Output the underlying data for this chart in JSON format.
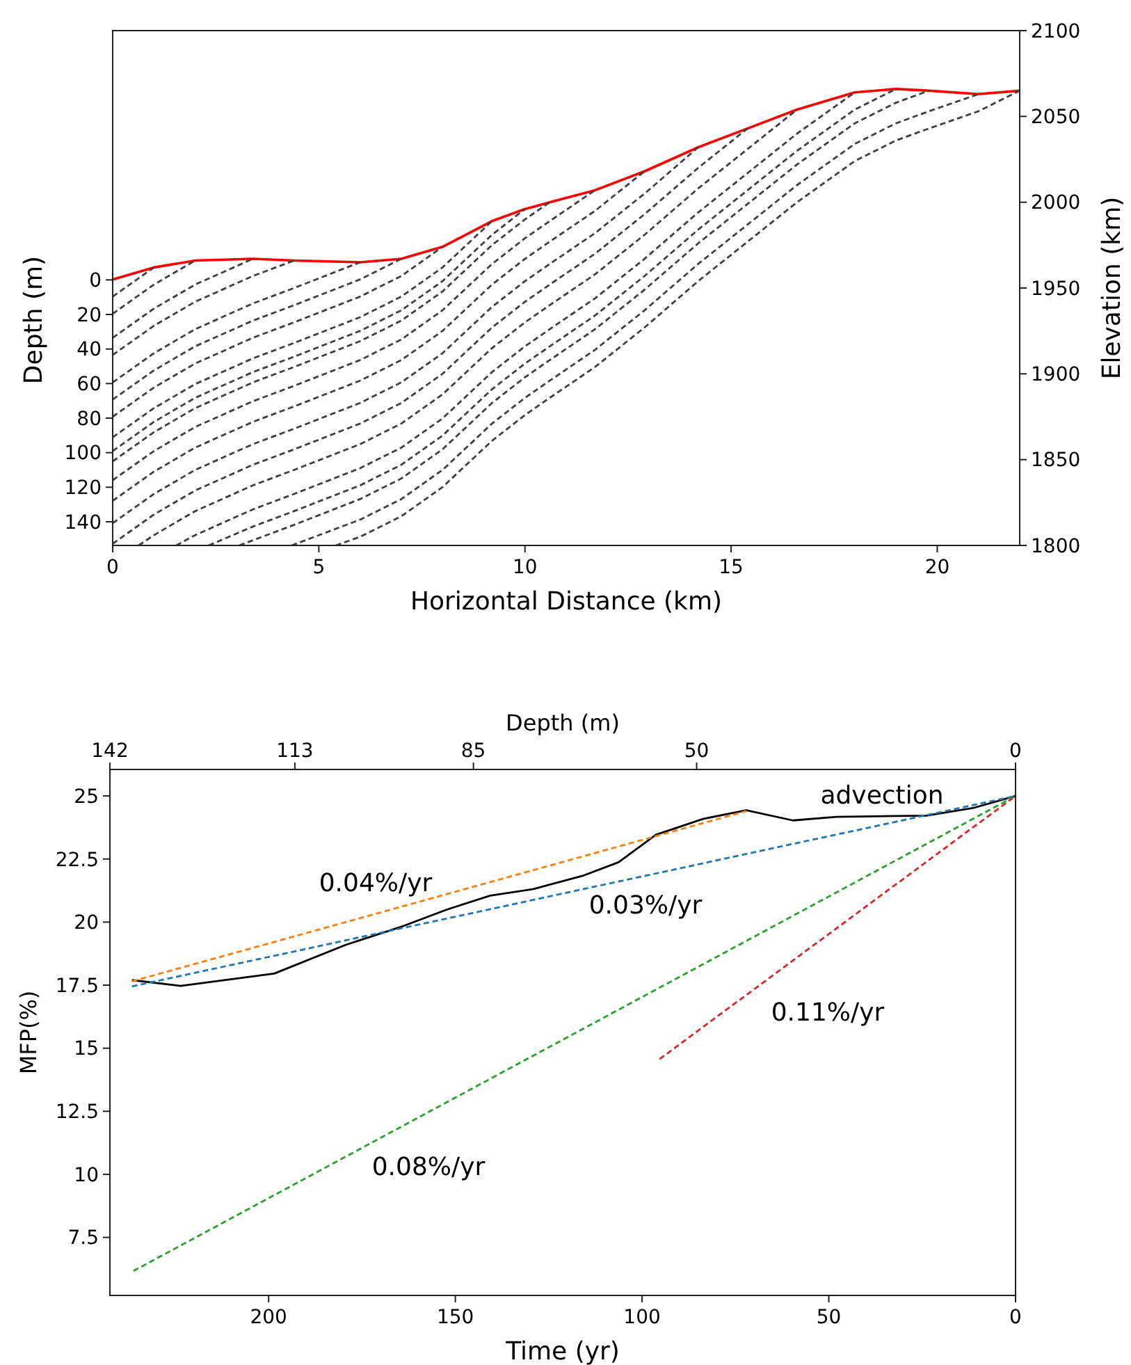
{
  "chart_data": [
    {
      "type": "line",
      "xlabel": "Horizontal Distance (km)",
      "ylabel": "Depth (m)",
      "y2label": "Elevation (km)",
      "xlim": [
        0,
        22
      ],
      "xticks": [
        0,
        5,
        10,
        15,
        20
      ],
      "ylim": [
        153.7,
        -144.3
      ],
      "yticks": [
        0,
        20,
        40,
        60,
        80,
        100,
        120,
        140
      ],
      "y2lim": [
        1800,
        2100
      ],
      "y2ticks": [
        1800,
        1850,
        1900,
        1950,
        2000,
        2050,
        2100
      ],
      "grid": false,
      "series": [
        {
          "color": "#ff0000",
          "axis": "y2",
          "line_style": "solid",
          "x": [
            0,
            1,
            2,
            3.4,
            4.4,
            6,
            7,
            8,
            9.2,
            10,
            10.6,
            11.7,
            12.9,
            14.2,
            15.4,
            16.6,
            18,
            19,
            19.8,
            21,
            22
          ],
          "values": [
            1955,
            1962,
            1966,
            1967,
            1966,
            1965,
            1967,
            1974,
            1989,
            1996,
            2000,
            2007,
            2018,
            2032,
            2043,
            2054,
            2064,
            2066,
            2065,
            2063,
            2065
          ]
        },
        {
          "color": "#404040",
          "axis": "y2",
          "line_style": "dashed",
          "x": [
            0,
            1
          ],
          "values": [
            1945,
            1962
          ]
        },
        {
          "color": "#404040",
          "axis": "y2",
          "line_style": "dashed",
          "x": [
            0,
            1,
            2
          ],
          "values": [
            1935,
            1952,
            1966
          ]
        },
        {
          "color": "#404040",
          "axis": "y2",
          "line_style": "dashed",
          "x": [
            0,
            1,
            2,
            3.4
          ],
          "values": [
            1921,
            1938,
            1952,
            1967
          ]
        },
        {
          "color": "#404040",
          "axis": "y2",
          "line_style": "dashed",
          "x": [
            0,
            1,
            2,
            3.4,
            4.4
          ],
          "values": [
            1911,
            1928,
            1942,
            1957,
            1966
          ]
        },
        {
          "color": "#404040",
          "axis": "y2",
          "line_style": "dashed",
          "x": [
            0,
            1,
            2,
            3.4,
            4.4,
            6
          ],
          "values": [
            1895,
            1912,
            1926,
            1941,
            1950,
            1965
          ]
        },
        {
          "color": "#404040",
          "axis": "y2",
          "line_style": "dashed",
          "x": [
            0,
            1,
            2,
            3.4,
            4.4,
            6,
            7
          ],
          "values": [
            1885,
            1902,
            1916,
            1931,
            1940,
            1955,
            1967
          ]
        },
        {
          "color": "#404040",
          "axis": "y2",
          "line_style": "dashed",
          "x": [
            0,
            1,
            2,
            3.4,
            4.4,
            6,
            7,
            8
          ],
          "values": [
            1875,
            1892,
            1906,
            1921,
            1930,
            1945,
            1957,
            1974
          ]
        },
        {
          "color": "#404040",
          "axis": "y2",
          "line_style": "dashed",
          "x": [
            0,
            1,
            2,
            3.4,
            4.4,
            6,
            7,
            8,
            9.2
          ],
          "values": [
            1863,
            1880,
            1894,
            1909,
            1918,
            1933,
            1945,
            1962,
            1989
          ]
        },
        {
          "color": "#404040",
          "axis": "y2",
          "line_style": "dashed",
          "x": [
            0,
            1,
            2,
            3.4,
            4.4,
            6,
            7,
            8,
            9.2,
            10
          ],
          "values": [
            1855,
            1872,
            1886,
            1901,
            1910,
            1925,
            1937,
            1954,
            1981,
            1996
          ]
        },
        {
          "color": "#404040",
          "axis": "y2",
          "line_style": "dashed",
          "x": [
            0,
            1,
            2,
            3.4,
            4.4,
            6,
            7,
            8,
            9.2,
            10,
            10.6
          ],
          "values": [
            1849,
            1866,
            1880,
            1895,
            1904,
            1919,
            1931,
            1948,
            1975,
            1990,
            2000
          ]
        },
        {
          "color": "#404040",
          "axis": "y2",
          "line_style": "dashed",
          "x": [
            0,
            1,
            2,
            3.4,
            4.4,
            6,
            7,
            8,
            9.2,
            10,
            10.6,
            11.7
          ],
          "values": [
            1838,
            1855,
            1869,
            1884,
            1893,
            1908,
            1920,
            1937,
            1964,
            1979,
            1989,
            2007
          ]
        },
        {
          "color": "#404040",
          "axis": "y2",
          "line_style": "dashed",
          "x": [
            0,
            1,
            2,
            3.4,
            4.4,
            6,
            7,
            8,
            9.2,
            10,
            10.6,
            11.7,
            12.9
          ],
          "values": [
            1826,
            1843,
            1857,
            1872,
            1881,
            1896,
            1908,
            1925,
            1952,
            1967,
            1977,
            1995,
            2018
          ]
        },
        {
          "color": "#404040",
          "axis": "y2",
          "line_style": "dashed",
          "x": [
            0,
            1,
            2,
            3.4,
            4.4,
            6,
            7,
            8,
            9.2,
            10,
            10.6,
            11.7,
            12.9,
            14.2
          ],
          "values": [
            1813,
            1830,
            1844,
            1859,
            1868,
            1883,
            1895,
            1912,
            1939,
            1954,
            1964,
            1982,
            2005,
            2032
          ]
        },
        {
          "color": "#404040",
          "axis": "y2",
          "line_style": "dashed",
          "x": [
            0,
            1,
            2,
            3.4,
            4.4,
            6,
            7,
            8,
            9.2,
            10,
            10.6,
            11.7,
            12.9,
            14.2,
            15.4
          ],
          "values": [
            1801,
            1818,
            1832,
            1847,
            1856,
            1871,
            1883,
            1900,
            1927,
            1942,
            1952,
            1970,
            1993,
            2020,
            2043
          ]
        },
        {
          "color": "#404040",
          "axis": "y2",
          "line_style": "dashed",
          "x": [
            0.63,
            1,
            2,
            3.4,
            4.4,
            6,
            7,
            8,
            9.2,
            10,
            10.6,
            11.7,
            12.9,
            14.2,
            15.4,
            16.6
          ],
          "values": [
            1800,
            1806,
            1820,
            1835,
            1844,
            1859,
            1871,
            1888,
            1915,
            1930,
            1940,
            1958,
            1981,
            2008,
            2031,
            2054
          ]
        },
        {
          "color": "#404040",
          "axis": "y2",
          "line_style": "dashed",
          "x": [
            1.54,
            2,
            3.4,
            4.4,
            6,
            7,
            8,
            9.2,
            10,
            10.6,
            11.7,
            12.9,
            14.2,
            15.4,
            16.6,
            18
          ],
          "values": [
            1800,
            1806,
            1821,
            1830,
            1845,
            1857,
            1874,
            1901,
            1916,
            1926,
            1944,
            1967,
            1994,
            2017,
            2040,
            2064
          ]
        },
        {
          "color": "#404040",
          "axis": "y2",
          "line_style": "dashed",
          "x": [
            2.33,
            3.4,
            4.4,
            6,
            7,
            8,
            9.2,
            10,
            10.6,
            11.7,
            12.9,
            14.2,
            15.4,
            16.6,
            18,
            19
          ],
          "values": [
            1800,
            1811,
            1820,
            1835,
            1847,
            1864,
            1891,
            1906,
            1916,
            1934,
            1957,
            1984,
            2007,
            2030,
            2054,
            2066
          ]
        },
        {
          "color": "#404040",
          "axis": "y2",
          "line_style": "dashed",
          "x": [
            3.07,
            3.4,
            4.4,
            6,
            7,
            8,
            9.2,
            10,
            10.6,
            11.7,
            12.9,
            14.2,
            15.4,
            16.6,
            18,
            19,
            19.8
          ],
          "values": [
            1800,
            1803,
            1812,
            1827,
            1839,
            1856,
            1883,
            1898,
            1908,
            1926,
            1949,
            1976,
            1999,
            2022,
            2046,
            2058,
            2065
          ]
        },
        {
          "color": "#404040",
          "axis": "y2",
          "line_style": "dashed",
          "x": [
            4.34,
            6,
            7,
            8,
            9.2,
            10,
            10.6,
            11.7,
            12.9,
            14.2,
            15.4,
            16.6,
            18,
            19,
            19.8,
            21
          ],
          "values": [
            1800,
            1815,
            1827,
            1844,
            1871,
            1886,
            1896,
            1914,
            1937,
            1964,
            1987,
            2010,
            2034,
            2046,
            2053,
            2063
          ]
        },
        {
          "color": "#404040",
          "axis": "y2",
          "line_style": "dashed",
          "x": [
            5.41,
            6,
            7,
            8,
            9.2,
            10,
            10.6,
            11.7,
            12.9,
            14.2,
            15.4,
            16.6,
            18,
            19,
            19.8,
            21,
            22
          ],
          "values": [
            1800,
            1805,
            1817,
            1834,
            1861,
            1876,
            1886,
            1904,
            1927,
            1954,
            1977,
            2000,
            2024,
            2036,
            2043,
            2053,
            2065
          ]
        }
      ]
    },
    {
      "type": "line",
      "xlabel": "Time (yr)",
      "ylabel": "MFP(%)",
      "x2label": "Depth (m)",
      "xlim": [
        242.5,
        0
      ],
      "xticks": [
        0,
        50,
        100,
        150,
        200
      ],
      "x2lim": [
        142,
        0
      ],
      "x2ticks": [
        142,
        113,
        85,
        50,
        0
      ],
      "ylim": [
        5.2,
        26.05
      ],
      "yticks": [
        7.5,
        10,
        12.5,
        15,
        17.5,
        20,
        22.5,
        25
      ],
      "grid": false,
      "series": [
        {
          "color": "#000000",
          "line_style": "solid",
          "x": [
            236.6,
            223.6,
            198.5,
            179.3,
            163.8,
            152.2,
            140.7,
            129.1,
            115.6,
            106.3,
            96.3,
            83.7,
            72.1,
            59.6,
            48,
            23.9,
            11.4,
            0
          ],
          "values": [
            17.7,
            17.47,
            17.96,
            19.1,
            19.85,
            20.5,
            21.05,
            21.31,
            21.85,
            22.37,
            23.46,
            24.09,
            24.43,
            24.03,
            24.17,
            24.22,
            24.52,
            25
          ]
        },
        {
          "color": "#ff7f0e",
          "line_style": "dashed",
          "x": [
            236.6,
            72.1
          ],
          "values": [
            17.65,
            24.4
          ]
        },
        {
          "color": "#1f77b4",
          "line_style": "dashed",
          "x": [
            236.6,
            0
          ],
          "values": [
            17.45,
            25
          ]
        },
        {
          "color": "#2ca02c",
          "line_style": "dashed",
          "x": [
            236.2,
            0
          ],
          "values": [
            6.17,
            25
          ]
        },
        {
          "color": "#d62728",
          "line_style": "dashed",
          "x": [
            95.3,
            0
          ],
          "values": [
            14.57,
            25
          ]
        }
      ],
      "annotations": [
        "0.04%/yr",
        "0.03%/yr",
        "advection",
        "0.11%/yr",
        "0.08%/yr"
      ]
    }
  ]
}
